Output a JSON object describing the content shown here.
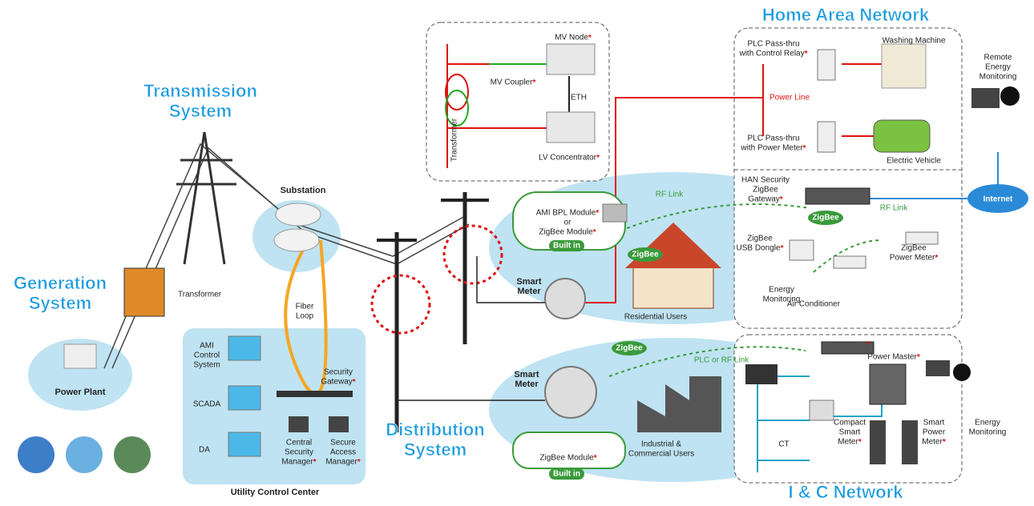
{
  "titles": {
    "home_area_network": "Home Area Network",
    "transmission_system": [
      "Transmission",
      "System"
    ],
    "generation_system": [
      "Generation",
      "System"
    ],
    "distribution_system": [
      "Distribution",
      "System"
    ],
    "ic_network": "I & C Network"
  },
  "generation": {
    "power_plant": "Power Plant",
    "transformer": "Transformer"
  },
  "substation": {
    "label": "Substation",
    "fiber_loop": [
      "Fiber",
      "Loop"
    ]
  },
  "utility_control_center": {
    "title": "Utility Control Center",
    "ami_control_system": [
      "AMI",
      "Control",
      "System"
    ],
    "scada": "SCADA",
    "da": "DA",
    "security_gateway": [
      "Security",
      "Gateway*"
    ],
    "central_security_manager": [
      "Central",
      "Security",
      "Manager*"
    ],
    "secure_access_manager": [
      "Secure",
      "Access",
      "Manager*"
    ]
  },
  "mv_callout": {
    "mv_node": "MV Node*",
    "mv_coupler": "MV Coupler*",
    "eth": "ETH",
    "transformer": "Transformer",
    "lv_concentrator": "LV Concentrator*"
  },
  "residential": {
    "module": [
      "AMI BPL Module*",
      "or",
      "ZigBee Module*"
    ],
    "built_in": "Built in",
    "smart_meter": [
      "Smart",
      "Meter"
    ],
    "rf_link": "RF Link",
    "zigbee": "ZigBee",
    "users": "Residential Users"
  },
  "home_area_network": {
    "plc_control_relay": [
      "PLC Pass-thru",
      "with Control Relay*"
    ],
    "washing_machine": "Washing Machine",
    "power_line": "Power Line",
    "plc_power_meter": [
      "PLC Pass-thru",
      "with Power Meter*"
    ],
    "electric_vehicle": "Electric Vehicle",
    "han_gateway": [
      "HAN Security",
      "ZigBee",
      "Gateway*"
    ],
    "zigbee": "ZigBee",
    "rf_link": "RF Link",
    "usb_dongle": [
      "ZigBee",
      "USB Dongle*"
    ],
    "zigbee_power_meter": [
      "ZigBee",
      "Power Meter*"
    ],
    "energy_monitoring": [
      "Energy",
      "Monitoring"
    ],
    "air_conditioner": "Air Conditioner"
  },
  "remote": {
    "remote_energy_monitoring": [
      "Remote",
      "Energy",
      "Monitoring"
    ],
    "internet": "Internet"
  },
  "ic": {
    "zigbee": "ZigBee",
    "plc_rf_link": "PLC or RF Link",
    "smart_meter": [
      "Smart",
      "Meter"
    ],
    "zigbee_module": "ZigBee Module*",
    "built_in": "Built in",
    "users": [
      "Industrial &",
      "Commercial Users"
    ],
    "mark": "*",
    "power_master": "Power Master*",
    "compact_smart_meter": [
      "Compact",
      "Smart",
      "Meter*"
    ],
    "ct": "CT",
    "smart_power_meter": [
      "Smart",
      "Power",
      "Meter*"
    ],
    "energy_monitoring": [
      "Energy",
      "Monitoring"
    ]
  }
}
